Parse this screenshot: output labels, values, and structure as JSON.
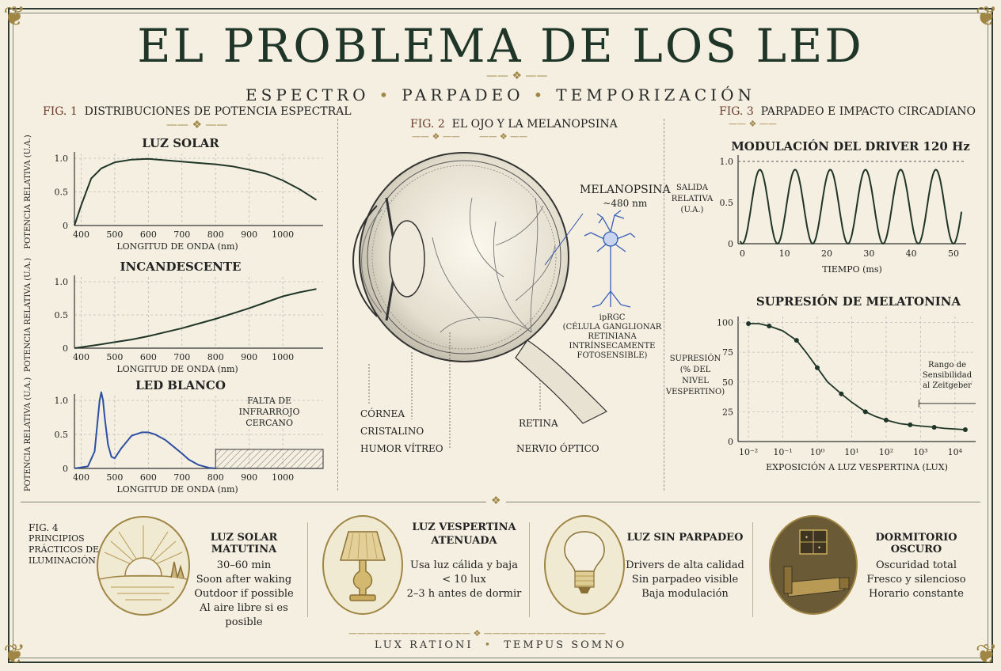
{
  "header": {
    "title": "EL PROBLEMA DE LOS LED",
    "subtitle_items": [
      "ESPECTRO",
      "PARPADEO",
      "TEMPORIZACIÓN"
    ]
  },
  "fig1": {
    "num": "FIG. 1",
    "title": "DISTRIBUCIONES DE POTENCIA ESPECTRAL",
    "ylabel": "POTENCIA RELATIVA (U.A.)",
    "xlabel": "LONGITUD DE ONDA (nm)",
    "xticks": [
      "400",
      "500",
      "600",
      "700",
      "800",
      "900",
      "1000"
    ],
    "yticks": [
      "0",
      "0.5",
      "1.0"
    ],
    "panels": [
      {
        "title": "LUZ SOLAR"
      },
      {
        "title": "INCANDESCENTE"
      },
      {
        "title": "LED BLANCO",
        "annotation": [
          "FALTA DE",
          "INFRARROJO",
          "CERCANO"
        ]
      }
    ]
  },
  "fig2": {
    "num": "FIG. 2",
    "title": "EL OJO Y LA MELANOPSINA",
    "melanopsin": [
      "MELANOPSINA",
      "~480 nm"
    ],
    "iprgc": [
      "ipRGC",
      "(CÉLULA GANGLIONAR",
      "RETINIANA",
      "INTRÍNSECAMENTE",
      "FOTOSENSIBLE)"
    ],
    "labels": {
      "cornea": "CÓRNEA",
      "lens": "CRISTALINO",
      "vitreous": "HUMOR VÍTREO",
      "retina": "RETINA",
      "optic_nerve": "NERVIO ÓPTICO"
    }
  },
  "fig3": {
    "num": "FIG. 3",
    "title": "PARPADEO E IMPACTO CIRCADIANO",
    "driver": {
      "title": "MODULACIÓN DEL DRIVER 120 Hz",
      "ylabel": [
        "SALIDA",
        "RELATIVA",
        "(U.A.)"
      ],
      "xlabel": "TIEMPO (ms)",
      "xticks": [
        "0",
        "10",
        "20",
        "30",
        "40",
        "50"
      ],
      "yticks": [
        "0",
        "0.5",
        "1.0"
      ]
    },
    "melatonin": {
      "title": "SUPRESIÓN DE MELATONINA",
      "ylabel": [
        "SUPRESIÓN",
        "(% DEL",
        "NIVEL",
        "VESPERTINO)"
      ],
      "xlabel": "EXPOSICIÓN A LUZ VESPERTINA (LUX)",
      "xticks": [
        "10⁻²",
        "10⁻¹",
        "10⁰",
        "10¹",
        "10²",
        "10³",
        "10⁴"
      ],
      "yticks": [
        "0",
        "25",
        "50",
        "75",
        "100"
      ],
      "annotation": [
        "Rango de",
        "Sensibilidad",
        "al Zeitgeber"
      ]
    }
  },
  "fig4": {
    "num": "FIG. 4",
    "title_lines": [
      "PRINCIPIOS",
      "PRÁCTICOS DE",
      "ILUMINACIÓN"
    ],
    "cards": [
      {
        "title": [
          "LUZ SOLAR MATUTINA"
        ],
        "lines": [
          "30–60 min",
          "Soon after waking",
          "Outdoor if possible",
          "Al aire libre si es posible"
        ],
        "icon": "sunrise-icon"
      },
      {
        "title": [
          "LUZ VESPERTINA",
          "ATENUADA"
        ],
        "lines": [
          "Usa luz cálida y baja",
          "< 10 lux",
          "2–3 h antes de dormir"
        ],
        "icon": "lamp-icon"
      },
      {
        "title": [
          "LUZ SIN PARPADEO"
        ],
        "lines": [
          "Drivers de alta calidad",
          "Sin parpadeo visible",
          "Baja modulación"
        ],
        "icon": "bulb-icon"
      },
      {
        "title": [
          "DORMITORIO OSCURO"
        ],
        "lines": [
          "Oscuridad total",
          "Fresco y silencioso",
          "Horario constante"
        ],
        "icon": "bedroom-icon"
      }
    ]
  },
  "footer": {
    "left": "LUX RATIONI",
    "right": "TEMPUS SOMNO"
  },
  "chart_data": [
    {
      "type": "line",
      "title": "LUZ SOLAR",
      "xlabel": "LONGITUD DE ONDA (nm)",
      "ylabel": "POTENCIA RELATIVA (U.A.)",
      "xlim": [
        380,
        1120
      ],
      "ylim": [
        0,
        1.1
      ],
      "x": [
        380,
        400,
        430,
        460,
        500,
        550,
        600,
        650,
        700,
        750,
        800,
        850,
        900,
        950,
        1000,
        1050,
        1100
      ],
      "y": [
        0.0,
        0.3,
        0.7,
        0.85,
        0.94,
        0.98,
        0.99,
        0.97,
        0.95,
        0.93,
        0.91,
        0.88,
        0.83,
        0.77,
        0.67,
        0.54,
        0.38
      ]
    },
    {
      "type": "line",
      "title": "INCANDESCENTE",
      "xlabel": "LONGITUD DE ONDA (nm)",
      "ylabel": "POTENCIA RELATIVA (U.A.)",
      "xlim": [
        380,
        1120
      ],
      "ylim": [
        0,
        1.1
      ],
      "x": [
        380,
        450,
        500,
        550,
        600,
        650,
        700,
        750,
        800,
        850,
        900,
        950,
        1000,
        1050,
        1100
      ],
      "y": [
        0.0,
        0.05,
        0.09,
        0.13,
        0.18,
        0.24,
        0.3,
        0.37,
        0.44,
        0.52,
        0.6,
        0.69,
        0.78,
        0.84,
        0.89
      ]
    },
    {
      "type": "line",
      "title": "LED BLANCO",
      "xlabel": "LONGITUD DE ONDA (nm)",
      "ylabel": "POTENCIA RELATIVA (U.A.)",
      "xlim": [
        380,
        1120
      ],
      "ylim": [
        0,
        1.1
      ],
      "x": [
        380,
        420,
        440,
        450,
        455,
        460,
        465,
        470,
        480,
        490,
        500,
        520,
        550,
        580,
        600,
        620,
        650,
        680,
        700,
        720,
        750,
        780,
        800
      ],
      "y": [
        0.0,
        0.03,
        0.25,
        0.75,
        1.0,
        1.12,
        1.0,
        0.75,
        0.35,
        0.17,
        0.15,
        0.3,
        0.48,
        0.53,
        0.53,
        0.5,
        0.42,
        0.3,
        0.22,
        0.13,
        0.05,
        0.01,
        0.0
      ]
    },
    {
      "type": "line",
      "title": "MODULACIÓN DEL DRIVER 120 Hz",
      "xlabel": "TIEMPO (ms)",
      "ylabel": "SALIDA RELATIVA (U.A.)",
      "xlim": [
        -1,
        53
      ],
      "ylim": [
        0,
        1.1
      ],
      "frequency_hz": 120,
      "peak": 0.9,
      "reference_line": 1.0
    },
    {
      "type": "line",
      "title": "SUPRESIÓN DE MELATONINA",
      "xlabel": "EXPOSICIÓN A LUZ VESPERTINA (LUX)",
      "ylabel": "SUPRESIÓN (% DEL NIVEL VESPERTINO)",
      "xscale": "log",
      "xlim": [
        0.005,
        40000
      ],
      "ylim": [
        0,
        105
      ],
      "x": [
        0.01,
        0.02,
        0.04,
        0.1,
        0.25,
        0.5,
        1,
        2,
        5,
        10,
        25,
        50,
        100,
        250,
        500,
        1000,
        2500,
        5000,
        20000
      ],
      "y": [
        99,
        99,
        97,
        93,
        85,
        74,
        62,
        50,
        40,
        33,
        25,
        21,
        18,
        15,
        14,
        13,
        12,
        11,
        10
      ]
    }
  ]
}
